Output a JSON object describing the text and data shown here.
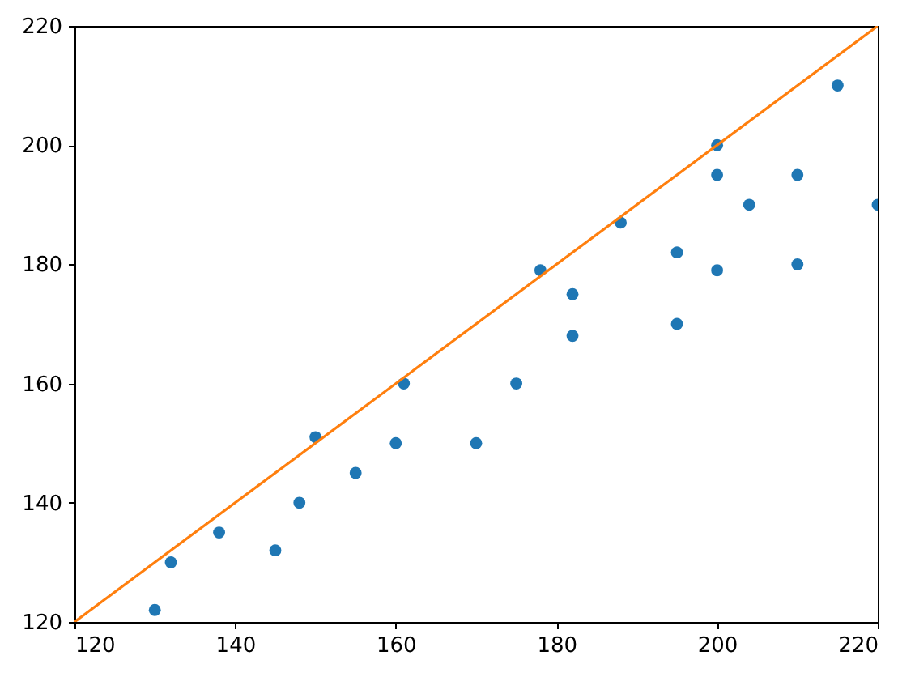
{
  "chart_data": {
    "type": "scatter",
    "xlim": [
      120,
      220
    ],
    "ylim": [
      120,
      220
    ],
    "xticks": [
      120,
      140,
      160,
      180,
      200,
      220
    ],
    "yticks": [
      120,
      140,
      160,
      180,
      200,
      220
    ],
    "grid": false,
    "series": [
      {
        "marker": "circle",
        "color": "#1f77b4",
        "x": [
          130,
          132,
          138,
          145,
          148,
          150,
          155,
          160,
          161,
          170,
          175,
          178,
          182,
          182,
          188,
          195,
          195,
          200,
          200,
          200,
          204,
          210,
          210,
          215,
          220
        ],
        "values": [
          122,
          130,
          135,
          132,
          140,
          151,
          145,
          150,
          160,
          150,
          160,
          179,
          175,
          168,
          187,
          182,
          170,
          200,
          195,
          179,
          190,
          195,
          180,
          210,
          190
        ]
      },
      {
        "type": "line",
        "marker": "none",
        "color": "#ff7f0e",
        "x": [
          120,
          220
        ],
        "values": [
          120,
          220
        ]
      }
    ]
  }
}
